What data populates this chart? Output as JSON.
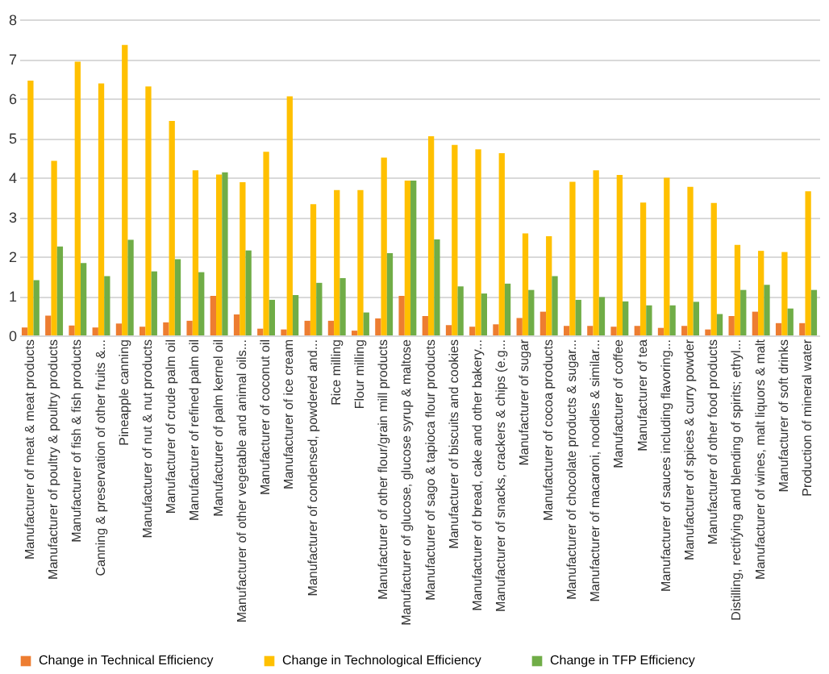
{
  "chart_data": {
    "type": "bar",
    "categories": [
      "Manufacturer of meat & meat products",
      "Manufacturer of poultry & poultry products",
      "Manufacturer of fish & fish products",
      "Canning & preservation of other fruits &...",
      "Pineapple canning",
      "Manufacturer of nut & nut products",
      "Manufacturer of crude palm oil",
      "Manufacturer of refined palm oil",
      "Manufacturer of  palm kernel oil",
      "Manufacturer of other vegetable and animal oils...",
      "Manufacturer of coconut oil",
      "Manufacturer of ice cream",
      "Manufacturer of condensed, powdered and...",
      "Rice milling",
      "Flour milling",
      "Manufacturer of other flour/grain mill products",
      "Manufacturer of glucose, glucose syrup & maltose",
      "Manufacturer of sago & tapioca flour products",
      "Manufacturer of biscuits and cookies",
      "Manufacturer of bread, cake and other bakery...",
      "Manufacturer of snacks, crackers & chips (e.g...",
      "Manufacturer of sugar",
      "Manufacturer of cocoa products",
      "Manufacturer of chocolate products & sugar...",
      "Manufacturer of macaroni, noodles & similar...",
      "Manufacturer of coffee",
      "Manufacturer of tea",
      "Manufacturer of sauces including flavoring...",
      "Manufacturer of spices & curry powder",
      "Manufacturer of other food products",
      "Distilling, rectifying and blending of spirits; ethyl...",
      "Manufacturer of wines, malt liquors & malt",
      "Manufacturer of soft drinks",
      "Production of mineral water"
    ],
    "series": [
      {
        "name": "Change in Technical Efficiency",
        "color": "#ed7d31",
        "values": [
          0.2,
          0.5,
          0.25,
          0.2,
          0.3,
          0.22,
          0.33,
          0.37,
          1.0,
          0.53,
          0.17,
          0.15,
          0.37,
          0.37,
          0.12,
          0.43,
          1.0,
          0.49,
          0.26,
          0.22,
          0.28,
          0.44,
          0.6,
          0.24,
          0.24,
          0.22,
          0.24,
          0.19,
          0.24,
          0.15,
          0.49,
          0.6,
          0.31,
          0.31
        ]
      },
      {
        "name": "Change in Technological Efficiency",
        "color": "#ffc000",
        "values": [
          6.45,
          4.42,
          6.93,
          6.38,
          7.35,
          6.3,
          5.43,
          4.18,
          4.07,
          3.88,
          4.65,
          6.05,
          3.32,
          3.68,
          3.68,
          4.5,
          3.92,
          5.04,
          4.82,
          4.71,
          4.61,
          2.58,
          2.51,
          3.89,
          4.18,
          4.06,
          3.36,
          3.99,
          3.76,
          3.35,
          2.29,
          2.14,
          2.11,
          3.65
        ]
      },
      {
        "name": "Change in TFP Efficiency",
        "color": "#70ad47",
        "values": [
          1.4,
          2.25,
          1.83,
          1.5,
          2.42,
          1.62,
          1.93,
          1.6,
          4.13,
          2.15,
          0.9,
          1.02,
          1.33,
          1.45,
          0.58,
          2.08,
          3.92,
          2.43,
          1.24,
          1.06,
          1.31,
          1.15,
          1.5,
          0.9,
          0.97,
          0.86,
          0.76,
          0.76,
          0.85,
          0.54,
          1.15,
          1.28,
          0.68,
          1.15
        ]
      }
    ],
    "ylim": [
      0,
      8
    ],
    "yticks": [
      0,
      1,
      2,
      3,
      4,
      5,
      6,
      7,
      8
    ],
    "grid": "y",
    "legend": "bottom"
  }
}
